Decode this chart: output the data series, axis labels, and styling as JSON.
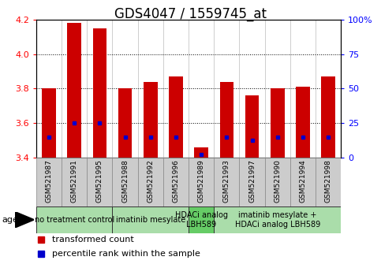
{
  "title": "GDS4047 / 1559745_at",
  "samples": [
    "GSM521987",
    "GSM521991",
    "GSM521995",
    "GSM521988",
    "GSM521992",
    "GSM521996",
    "GSM521989",
    "GSM521993",
    "GSM521997",
    "GSM521990",
    "GSM521994",
    "GSM521998"
  ],
  "bar_values": [
    3.8,
    4.18,
    4.15,
    3.8,
    3.84,
    3.87,
    3.46,
    3.84,
    3.76,
    3.8,
    3.81,
    3.87
  ],
  "blue_dot_values": [
    3.52,
    3.6,
    3.6,
    3.52,
    3.52,
    3.52,
    3.42,
    3.52,
    3.5,
    3.52,
    3.52,
    3.52
  ],
  "ymin": 3.4,
  "ymax": 4.2,
  "y2min": 0,
  "y2max": 100,
  "yticks_left": [
    3.4,
    3.6,
    3.8,
    4.0,
    4.2
  ],
  "yticks_right": [
    0,
    25,
    50,
    75,
    100
  ],
  "bar_color": "#cc0000",
  "dot_color": "#0000cc",
  "agent_groups": [
    {
      "label": "no treatment control",
      "start": 0,
      "end": 3,
      "color": "#aaddaa"
    },
    {
      "label": "imatinib mesylate",
      "start": 3,
      "end": 6,
      "color": "#aaddaa"
    },
    {
      "label": "HDACi analog\nLBH589",
      "start": 6,
      "end": 7,
      "color": "#66cc66"
    },
    {
      "label": "imatinib mesylate +\nHDACi analog LBH589",
      "start": 7,
      "end": 12,
      "color": "#aaddaa"
    }
  ],
  "sample_bg_color": "#cccccc",
  "title_fontsize": 12,
  "tick_fontsize": 8,
  "sample_fontsize": 6.5,
  "agent_fontsize": 7,
  "legend_fontsize": 8,
  "bar_width": 0.55
}
